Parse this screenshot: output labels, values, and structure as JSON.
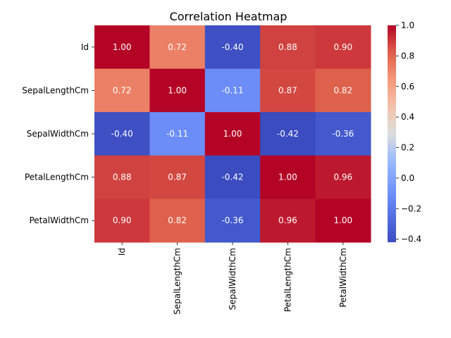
{
  "chart_data": {
    "type": "heatmap",
    "title": "Correlation Heatmap",
    "rows": [
      "Id",
      "SepalLengthCm",
      "SepalWidthCm",
      "PetalLengthCm",
      "PetalWidthCm"
    ],
    "columns": [
      "Id",
      "SepalLengthCm",
      "SepalWidthCm",
      "PetalLengthCm",
      "PetalWidthCm"
    ],
    "values": [
      [
        1.0,
        0.72,
        -0.4,
        0.88,
        0.9
      ],
      [
        0.72,
        1.0,
        -0.11,
        0.87,
        0.82
      ],
      [
        -0.4,
        -0.11,
        1.0,
        -0.42,
        -0.36
      ],
      [
        0.88,
        0.87,
        -0.42,
        1.0,
        0.96
      ],
      [
        0.9,
        0.82,
        -0.36,
        0.96,
        1.0
      ]
    ],
    "annotation_format": "0.00",
    "colormap": "coolwarm",
    "colorbar": {
      "range": [
        -0.42,
        1.0
      ],
      "ticks": [
        -0.4,
        -0.2,
        0.0,
        0.2,
        0.4,
        0.6,
        0.8,
        1.0
      ],
      "tick_labels": [
        "−0.4",
        "−0.2",
        "0.0",
        "0.2",
        "0.4",
        "0.6",
        "0.8",
        "1.0"
      ]
    },
    "colors": {
      "low": "#3b4cc0",
      "mid": "#dddddd",
      "high": "#b40426"
    }
  }
}
